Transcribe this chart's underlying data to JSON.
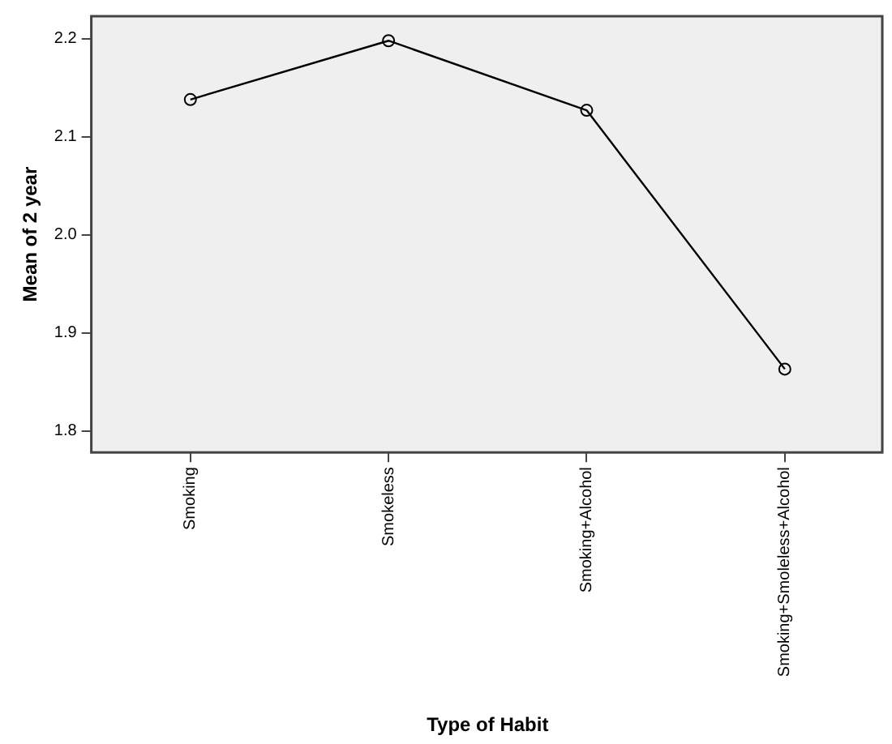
{
  "chart_data": {
    "type": "line",
    "xlabel": "Type of Habit",
    "ylabel": "Mean of 2 year",
    "categories": [
      "Smoking",
      "Smokeless",
      "Smoking+Alcohol",
      "Smoking+Smoleless+Alcohol"
    ],
    "series": [
      {
        "color": "#000000",
        "values": [
          2.138,
          2.198,
          2.127,
          1.863
        ]
      }
    ],
    "ylim": [
      1.778,
      2.223
    ],
    "yticks": [
      {
        "value": 1.8,
        "label": "1.8"
      },
      {
        "value": 1.9,
        "label": "1.9"
      },
      {
        "value": 2,
        "label": "2.0"
      },
      {
        "value": 2.1,
        "label": "2.1"
      },
      {
        "value": 2.2,
        "label": "2.2"
      }
    ],
    "marker": "circle",
    "line_style": "solid",
    "grid": false,
    "legend": false
  }
}
